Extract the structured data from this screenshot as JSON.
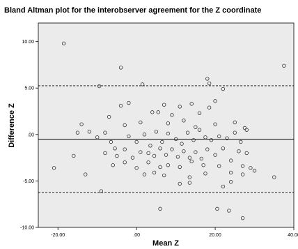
{
  "chart_data": {
    "type": "scatter",
    "title": "Bland Altman plot for the interobserver agreement for the Z coordinate",
    "xlabel": "Mean Z",
    "ylabel": "Difference Z",
    "xlim": [
      -25,
      40
    ],
    "ylim": [
      -10,
      12
    ],
    "x_ticks": [
      -20,
      0,
      20,
      40
    ],
    "x_tick_labels": [
      "-20.00",
      ".00",
      "20.00",
      "40.00"
    ],
    "y_ticks": [
      -10,
      -5,
      0,
      5,
      10
    ],
    "y_tick_labels": [
      "-10.00",
      "-5.00",
      ".00",
      "5.00",
      "10.00"
    ],
    "grid": false,
    "colors": {
      "plot_background": "#ebebeb",
      "points": "#333333",
      "lines": "#000000"
    },
    "reference_lines": [
      {
        "kind": "mean",
        "y": -0.5,
        "style": "solid"
      },
      {
        "kind": "upper-limit",
        "y": 5.25,
        "style": "dashed"
      },
      {
        "kind": "lower-limit",
        "y": -6.25,
        "style": "dashed"
      }
    ],
    "points": [
      [
        -18.5,
        9.8
      ],
      [
        -4,
        7.2
      ],
      [
        -9.5,
        5.2
      ],
      [
        1.5,
        5.4
      ],
      [
        18,
        6
      ],
      [
        18.5,
        5.5
      ],
      [
        22,
        4.9
      ],
      [
        37.5,
        7.4
      ],
      [
        -2,
        3.4
      ],
      [
        -4,
        3.1
      ],
      [
        7,
        3.2
      ],
      [
        11,
        3
      ],
      [
        14,
        3.3
      ],
      [
        20,
        3.6
      ],
      [
        9,
        2.1
      ],
      [
        16,
        2.3
      ],
      [
        18.5,
        2.9
      ],
      [
        -14,
        1.1
      ],
      [
        -12,
        0.3
      ],
      [
        -7,
        1.9
      ],
      [
        -3,
        1
      ],
      [
        1,
        1.3
      ],
      [
        4,
        2.4
      ],
      [
        5.5,
        2.4
      ],
      [
        8,
        1.2
      ],
      [
        12,
        1.5
      ],
      [
        15,
        0.8
      ],
      [
        20,
        1.1
      ],
      [
        25,
        1.3
      ],
      [
        27.5,
        0.7
      ],
      [
        -15,
        0.2
      ],
      [
        -10,
        -0.3
      ],
      [
        -8,
        0.2
      ],
      [
        -6.5,
        -0.8
      ],
      [
        -5.5,
        -1.5
      ],
      [
        -2,
        -0.2
      ],
      [
        0,
        -0.8
      ],
      [
        2,
        0
      ],
      [
        3.5,
        -1.2
      ],
      [
        5,
        0.3
      ],
      [
        6.5,
        -0.8
      ],
      [
        8,
        0.1
      ],
      [
        10,
        -0.5
      ],
      [
        11.5,
        -1
      ],
      [
        13,
        0.2
      ],
      [
        14.5,
        -0.6
      ],
      [
        16,
        0.5
      ],
      [
        17.5,
        -0.3
      ],
      [
        19,
        -0.6
      ],
      [
        21,
        -0.2
      ],
      [
        23,
        -0.4
      ],
      [
        25,
        0.2
      ],
      [
        26.5,
        -0.8
      ],
      [
        28,
        0.5
      ],
      [
        -8,
        -2
      ],
      [
        -5,
        -2.3
      ],
      [
        -3,
        -1.6
      ],
      [
        -1,
        -2.5
      ],
      [
        1,
        -1.9
      ],
      [
        3,
        -2
      ],
      [
        4.5,
        -2.3
      ],
      [
        6,
        -1.5
      ],
      [
        7.5,
        -2.2
      ],
      [
        9,
        -1.6
      ],
      [
        10.5,
        -2.4
      ],
      [
        12,
        -1.8
      ],
      [
        13.5,
        -2.5
      ],
      [
        15,
        -1.9
      ],
      [
        16.5,
        -2.6
      ],
      [
        18,
        -1.6
      ],
      [
        20,
        -2.2
      ],
      [
        22,
        -1.5
      ],
      [
        24,
        -2.8
      ],
      [
        26,
        -1.8
      ],
      [
        28,
        -2
      ],
      [
        -6,
        -3.3
      ],
      [
        -3,
        -3
      ],
      [
        0,
        -3.6
      ],
      [
        3,
        -3
      ],
      [
        6,
        -3.5
      ],
      [
        8,
        -3.3
      ],
      [
        11,
        -3.5
      ],
      [
        14,
        -2.9
      ],
      [
        17,
        -3.3
      ],
      [
        21,
        -3.4
      ],
      [
        24,
        -4.1
      ],
      [
        27,
        -3.4
      ],
      [
        29,
        -3.6
      ],
      [
        -13,
        -4.3
      ],
      [
        -16,
        -2.3
      ],
      [
        2,
        -4.3
      ],
      [
        4.5,
        -4.1
      ],
      [
        7,
        -4.4
      ],
      [
        13.5,
        -4.6
      ],
      [
        17.5,
        -4.2
      ],
      [
        27,
        -4.3
      ],
      [
        -9,
        -6.1
      ],
      [
        -21,
        -3.6
      ],
      [
        6,
        -8
      ],
      [
        20.5,
        -8
      ],
      [
        23.5,
        -8.2
      ],
      [
        27,
        -9
      ],
      [
        22,
        -5.6
      ],
      [
        24,
        -5.1
      ],
      [
        35,
        -4.6
      ],
      [
        30,
        -3.9
      ],
      [
        11,
        -5.3
      ],
      [
        13.5,
        -5.2
      ]
    ]
  }
}
